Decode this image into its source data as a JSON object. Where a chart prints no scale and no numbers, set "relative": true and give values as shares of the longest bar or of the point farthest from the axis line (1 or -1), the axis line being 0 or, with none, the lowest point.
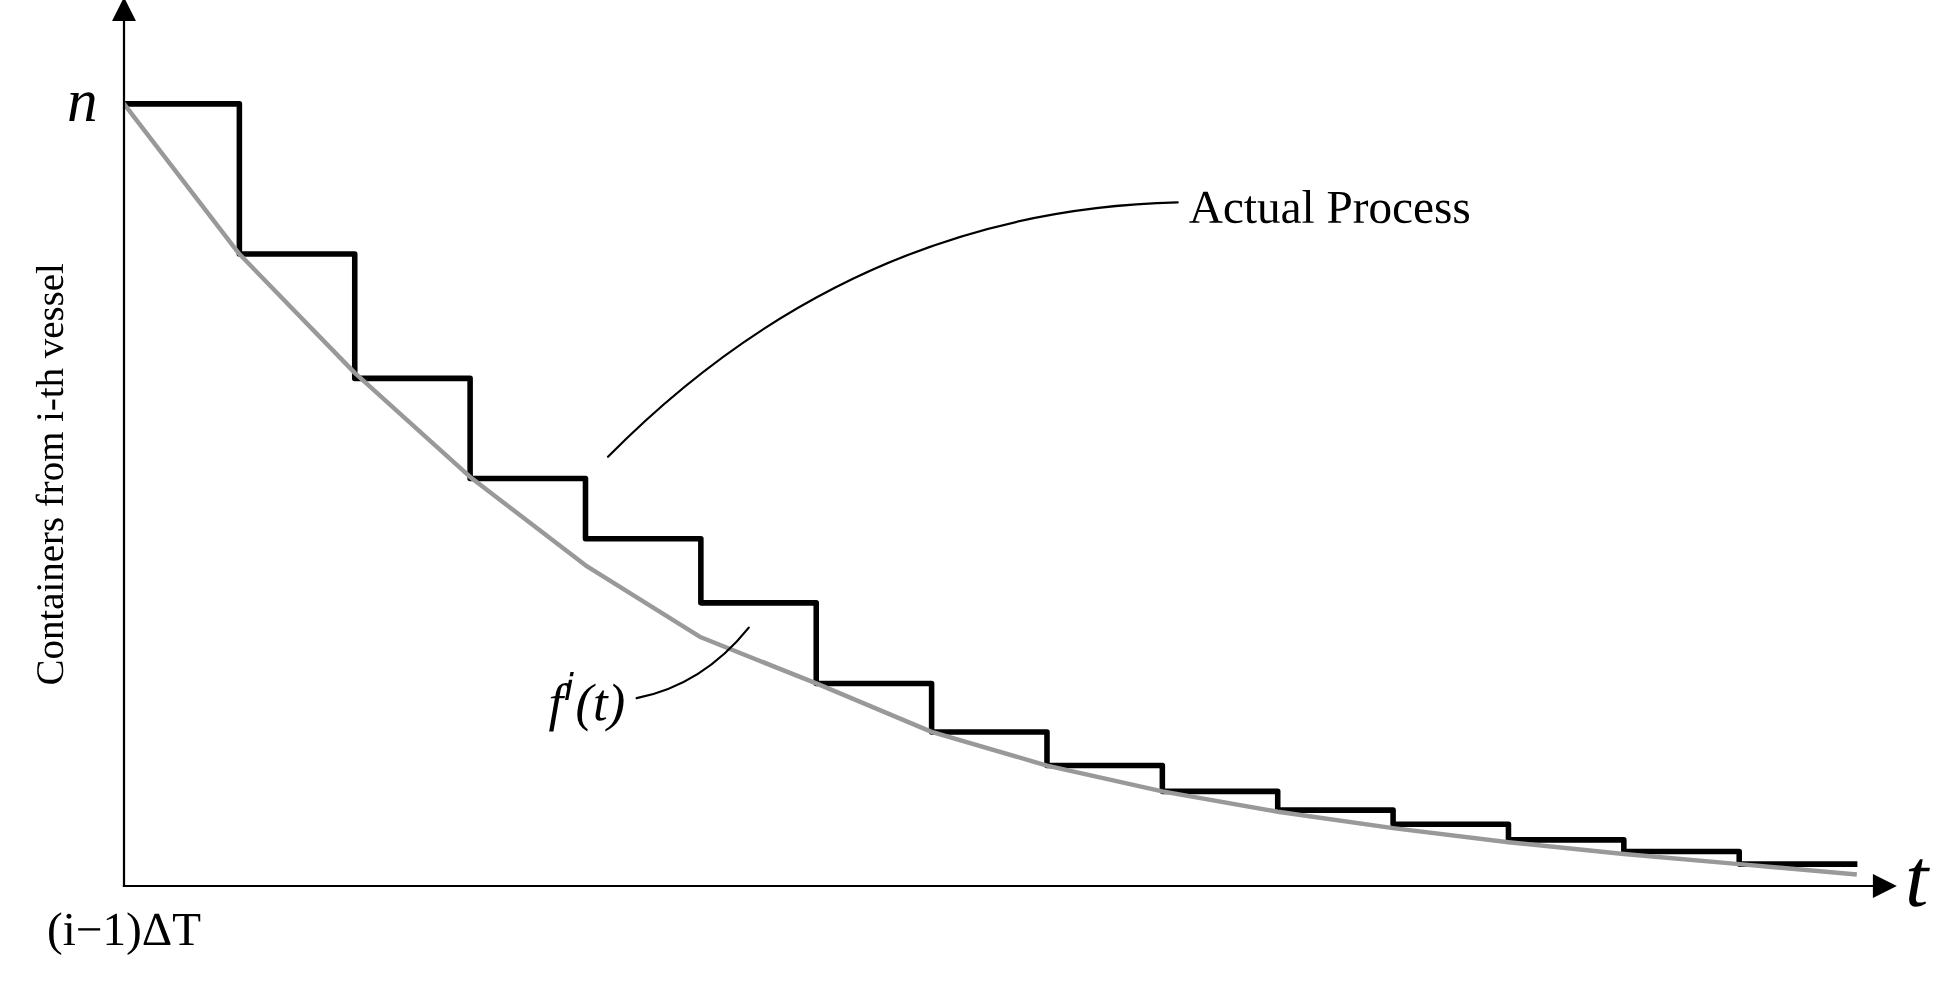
{
  "chart_data": {
    "type": "step",
    "relative": true,
    "xlabel": "t",
    "ylabel": "Containers from i-th vessel",
    "categories": [
      null,
      null,
      null,
      null,
      null,
      null,
      null,
      null,
      null,
      null,
      null,
      null,
      null,
      null,
      null,
      null
    ],
    "series": [
      {
        "color": "#000000",
        "values": [
          1,
          0.808,
          0.649,
          0.521,
          0.444,
          0.362,
          0.259,
          0.197,
          0.154,
          0.121,
          0.097,
          0.079,
          0.059,
          0.044,
          0.028,
          0.028
        ]
      },
      {
        "type": "line",
        "color": "#999999",
        "values": [
          1,
          0.808,
          0.656,
          0.523,
          0.41,
          0.318,
          0.259,
          0.197,
          0.154,
          0.121,
          0.095,
          0.074,
          0.056,
          0.041,
          0.028,
          0.015
        ]
      }
    ],
    "annotations": [
      "Actual Process",
      "f$^{i}$(t)",
      "n",
      "(i−1)ΔT"
    ]
  }
}
